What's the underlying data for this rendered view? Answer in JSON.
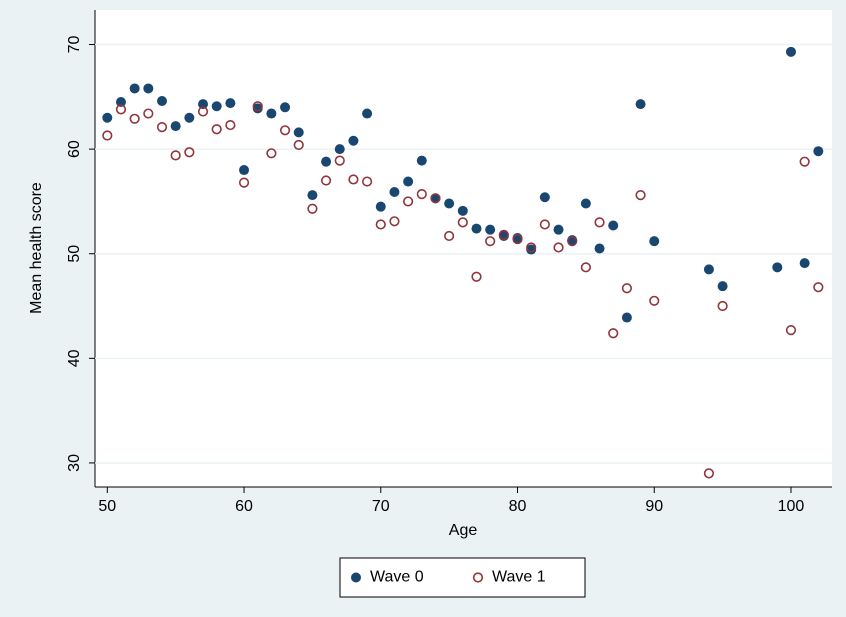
{
  "chart_data": {
    "type": "scatter",
    "x_label": "Age",
    "y_label": "Mean health score",
    "xlim": [
      49.1,
      103
    ],
    "ylim": [
      27.7,
      73.3
    ],
    "xticks": [
      50,
      60,
      70,
      80,
      90,
      100
    ],
    "yticks": [
      30,
      40,
      50,
      60,
      70
    ],
    "grid": true,
    "legend": "bottom",
    "series": [
      {
        "name": "Wave 0",
        "color": "#1a476f",
        "marker": "filled",
        "x": [
          50,
          51,
          52,
          53,
          54,
          55,
          56,
          57,
          58,
          59,
          60,
          61,
          62,
          63,
          64,
          65,
          66,
          67,
          68,
          69,
          70,
          71,
          72,
          73,
          74,
          75,
          76,
          77,
          78,
          79,
          80,
          81,
          82,
          83,
          84,
          85,
          86,
          87,
          88,
          89,
          90,
          94,
          95,
          99,
          100,
          101,
          102
        ],
        "values": [
          63.0,
          64.5,
          65.8,
          65.8,
          64.6,
          62.2,
          63.0,
          64.3,
          64.1,
          64.4,
          58.0,
          63.9,
          63.4,
          64.0,
          61.6,
          55.6,
          58.8,
          60.0,
          60.8,
          63.4,
          54.5,
          55.9,
          56.9,
          58.9,
          55.3,
          54.8,
          54.1,
          52.4,
          52.3,
          51.7,
          51.5,
          50.4,
          55.4,
          52.3,
          51.3,
          54.8,
          50.5,
          52.7,
          43.9,
          64.3,
          51.2,
          48.5,
          46.9,
          48.7,
          69.3,
          49.1,
          59.8
        ]
      },
      {
        "name": "Wave 1",
        "color": "#90353b",
        "marker": "hollow",
        "x": [
          50,
          51,
          52,
          53,
          54,
          55,
          56,
          57,
          58,
          59,
          60,
          61,
          62,
          63,
          64,
          65,
          66,
          67,
          68,
          69,
          70,
          71,
          72,
          73,
          74,
          75,
          76,
          77,
          78,
          79,
          80,
          81,
          82,
          83,
          84,
          85,
          86,
          87,
          88,
          89,
          90,
          94,
          95,
          100,
          101,
          102
        ],
        "values": [
          61.3,
          63.8,
          62.9,
          63.4,
          62.1,
          59.4,
          59.7,
          63.6,
          61.9,
          62.3,
          56.8,
          64.1,
          59.6,
          61.8,
          60.4,
          54.3,
          57.0,
          58.9,
          57.1,
          56.9,
          52.8,
          53.1,
          55.0,
          55.7,
          55.3,
          51.7,
          53.0,
          47.8,
          51.2,
          51.8,
          51.4,
          50.6,
          52.8,
          50.6,
          51.2,
          48.7,
          53.0,
          42.4,
          46.7,
          55.6,
          45.5,
          29.0,
          45.0,
          42.7,
          58.8,
          46.8
        ]
      }
    ]
  }
}
